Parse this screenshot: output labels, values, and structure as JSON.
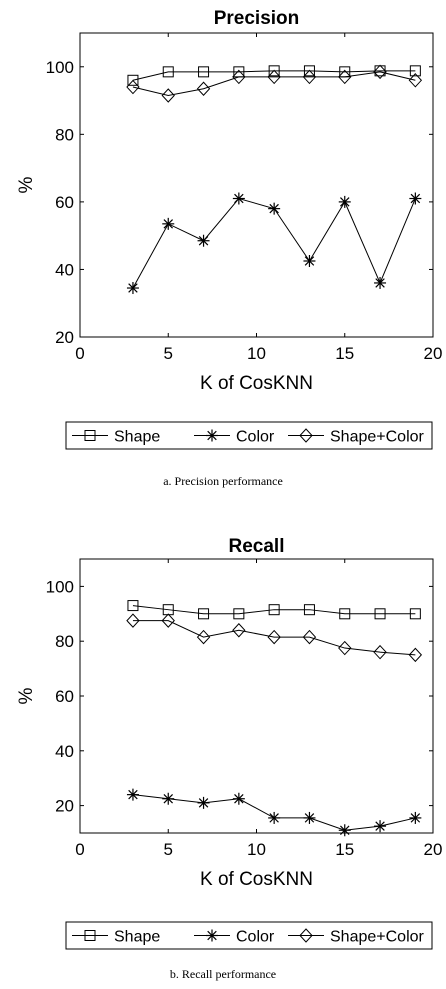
{
  "chart_data": [
    {
      "type": "line",
      "title": "Precision",
      "xlabel": "K of CosKNN",
      "ylabel": "%",
      "caption": "a. Precision performance",
      "xlim": [
        0,
        20
      ],
      "ylim": [
        20,
        110
      ],
      "x_ticks": [
        0,
        5,
        10,
        15,
        20
      ],
      "y_ticks": [
        20,
        40,
        60,
        80,
        100
      ],
      "x": [
        3,
        5,
        7,
        9,
        11,
        13,
        15,
        17,
        19
      ],
      "legend_position": "bottom-outside",
      "series": [
        {
          "name": "Shape",
          "marker": "square",
          "values": [
            96,
            98.5,
            98.5,
            98.5,
            98.8,
            98.8,
            98.5,
            98.8,
            98.8
          ]
        },
        {
          "name": "Color",
          "marker": "asterisk",
          "values": [
            34.5,
            53.5,
            48.5,
            61,
            58,
            42.5,
            60,
            36,
            61
          ]
        },
        {
          "name": "Shape+Color",
          "marker": "diamond",
          "values": [
            94,
            91.5,
            93.5,
            97,
            97,
            97,
            97,
            98.5,
            96
          ]
        }
      ]
    },
    {
      "type": "line",
      "title": "Recall",
      "xlabel": "K of CosKNN",
      "ylabel": "%",
      "caption": "b. Recall performance",
      "xlim": [
        0,
        20
      ],
      "ylim": [
        10,
        110
      ],
      "x_ticks": [
        0,
        5,
        10,
        15,
        20
      ],
      "y_ticks": [
        20,
        40,
        60,
        80,
        100
      ],
      "x": [
        3,
        5,
        7,
        9,
        11,
        13,
        15,
        17,
        19
      ],
      "legend_position": "bottom-outside",
      "series": [
        {
          "name": "Shape",
          "marker": "square",
          "values": [
            93,
            91.5,
            90,
            90,
            91.5,
            91.5,
            90,
            90,
            90
          ]
        },
        {
          "name": "Color",
          "marker": "asterisk",
          "values": [
            24,
            22.5,
            21,
            22.5,
            15.5,
            15.5,
            11,
            12.5,
            15.5
          ]
        },
        {
          "name": "Shape+Color",
          "marker": "diamond",
          "values": [
            87.5,
            87.5,
            81.5,
            84,
            81.5,
            81.5,
            77.5,
            76,
            75
          ]
        }
      ]
    }
  ]
}
